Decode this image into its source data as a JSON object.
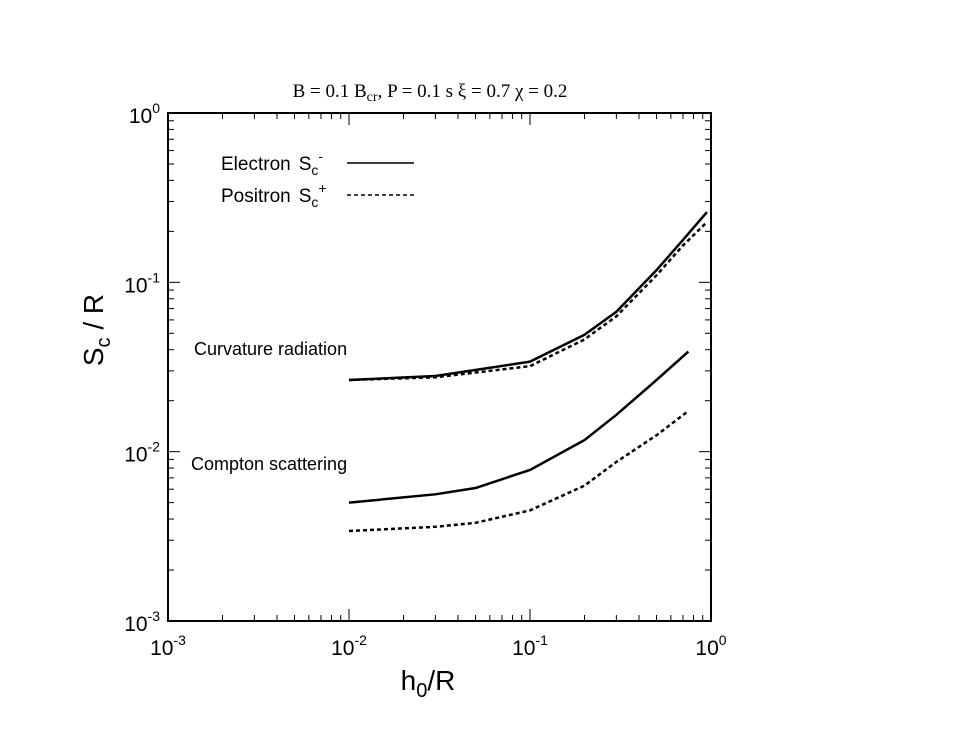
{
  "chart_data": {
    "type": "line",
    "title": {
      "text": "B = 0.1 B",
      "sub": "cr",
      "rest": ",  P = 0.1 s ξ = 0.7    χ = 0.2"
    },
    "xlabel": {
      "text": "h",
      "sub": "0",
      "rest": "/R"
    },
    "ylabel": {
      "text": "S",
      "sub": "c",
      "rest": " / R"
    },
    "xscale": "log",
    "yscale": "log",
    "xlim": [
      0.001,
      1
    ],
    "ylim": [
      0.001,
      1
    ],
    "xticks": [
      {
        "value": 0.001,
        "label": "10",
        "sup": "-3"
      },
      {
        "value": 0.01,
        "label": "10",
        "sup": "-2"
      },
      {
        "value": 0.1,
        "label": "10",
        "sup": "-1"
      },
      {
        "value": 1,
        "label": "10",
        "sup": "0"
      }
    ],
    "yticks": [
      {
        "value": 0.001,
        "label": "10",
        "sup": "-3"
      },
      {
        "value": 0.01,
        "label": "10",
        "sup": "-2"
      },
      {
        "value": 0.1,
        "label": "10",
        "sup": "-1"
      },
      {
        "value": 1,
        "label": "10",
        "sup": "0"
      }
    ],
    "grid": false,
    "color": "#000000",
    "legend": [
      {
        "name": "Electron",
        "symbol": "S",
        "sub": "c",
        "sup": "-",
        "dashed": false
      },
      {
        "name": "Positron",
        "symbol": "S",
        "sub": "c",
        "sup": "+",
        "dashed": true
      }
    ],
    "annotations": [
      "Curvature radiation",
      "Compton scattering"
    ],
    "series": [
      {
        "dashed": false,
        "x": [
          0.01,
          0.03,
          0.1,
          0.2,
          0.3,
          0.5,
          0.7,
          0.95
        ],
        "values": [
          0.0265,
          0.028,
          0.034,
          0.049,
          0.067,
          0.118,
          0.178,
          0.26
        ]
      },
      {
        "dashed": true,
        "x": [
          0.01,
          0.03,
          0.1,
          0.2,
          0.3,
          0.5,
          0.7,
          0.95
        ],
        "values": [
          0.0265,
          0.0275,
          0.032,
          0.046,
          0.063,
          0.11,
          0.165,
          0.227
        ]
      },
      {
        "dashed": false,
        "x": [
          0.01,
          0.03,
          0.05,
          0.1,
          0.2,
          0.3,
          0.5,
          0.75
        ],
        "values": [
          0.005,
          0.0056,
          0.0061,
          0.0078,
          0.0117,
          0.0165,
          0.0265,
          0.039
        ]
      },
      {
        "dashed": true,
        "x": [
          0.01,
          0.03,
          0.05,
          0.1,
          0.2,
          0.3,
          0.5,
          0.75
        ],
        "values": [
          0.0034,
          0.0036,
          0.0038,
          0.0045,
          0.0063,
          0.0087,
          0.0125,
          0.0174
        ]
      }
    ]
  }
}
